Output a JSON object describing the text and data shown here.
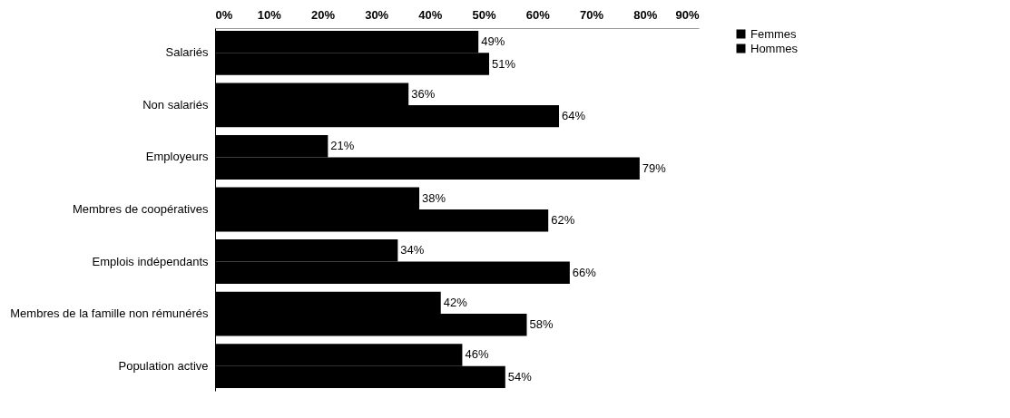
{
  "chart_data": {
    "type": "bar",
    "orientation": "horizontal",
    "categories": [
      "Salariés",
      "Non salariés",
      "Employeurs",
      "Membres de coopératives",
      "Emplois indépendants",
      "Membres de la famille non rémunérés",
      "Population active"
    ],
    "series": [
      {
        "name": "Femmes",
        "color": "#000000",
        "values": [
          49,
          36,
          21,
          38,
          34,
          42,
          46
        ],
        "value_labels": [
          "49%",
          "36%",
          "21%",
          "38%",
          "34%",
          "42%",
          "46%"
        ]
      },
      {
        "name": "Hommes",
        "color": "#000000",
        "values": [
          51,
          64,
          79,
          62,
          66,
          58,
          54
        ],
        "value_labels": [
          "51%",
          "64%",
          "79%",
          "62%",
          "66%",
          "58%",
          "54%"
        ]
      }
    ],
    "xlim": [
      0,
      90
    ],
    "xticks": [
      {
        "value": 0,
        "label": "0%"
      },
      {
        "value": 10,
        "label": "10%"
      },
      {
        "value": 20,
        "label": "20%"
      },
      {
        "value": 30,
        "label": "30%"
      },
      {
        "value": 40,
        "label": "40%"
      },
      {
        "value": 50,
        "label": "50%"
      },
      {
        "value": 60,
        "label": "60%"
      },
      {
        "value": 70,
        "label": "70%"
      },
      {
        "value": 80,
        "label": "80%"
      },
      {
        "value": 90,
        "label": "90%"
      }
    ],
    "grid": false,
    "legend": "right"
  }
}
